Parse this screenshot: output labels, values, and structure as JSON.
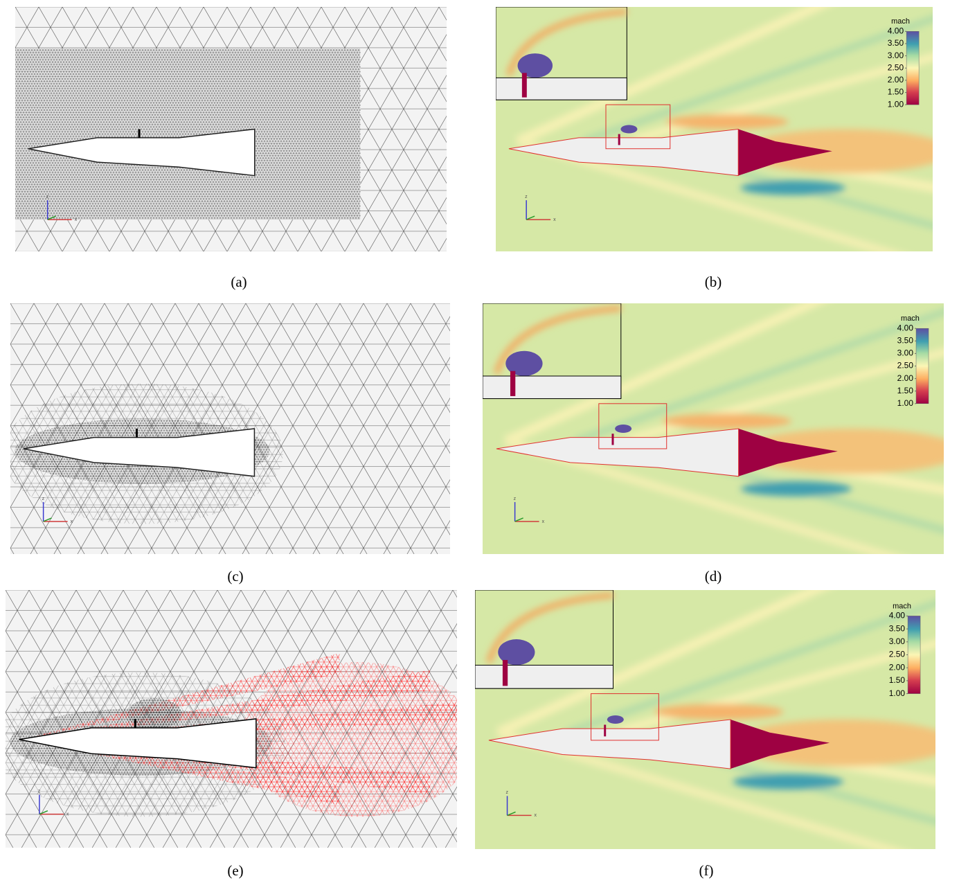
{
  "panels": [
    {
      "label": "(a)",
      "type": "mesh",
      "axes": [
        "z",
        "x"
      ]
    },
    {
      "label": "(b)",
      "type": "mach-contour",
      "axes": [
        "z",
        "x"
      ],
      "colorbar": {
        "title": "mach",
        "range": [
          1,
          4
        ],
        "ticks": [
          {
            "value": 4,
            "label": "4.00"
          },
          {
            "value": 3.5,
            "label": "3.50"
          },
          {
            "value": 3,
            "label": "3.00"
          },
          {
            "value": 2.5,
            "label": "2.50"
          },
          {
            "value": 2,
            "label": "2.00"
          },
          {
            "value": 1.5,
            "label": "1.50"
          },
          {
            "value": 1,
            "label": "1.00"
          }
        ]
      }
    },
    {
      "label": "(c)",
      "type": "coarse-mesh",
      "axes": [
        "z",
        "x"
      ]
    },
    {
      "label": "(d)",
      "type": "mach-contour",
      "axes": [
        "z",
        "x"
      ],
      "colorbar": {
        "title": "mach",
        "range": [
          1,
          4
        ],
        "ticks": [
          {
            "value": 4,
            "label": "4.00"
          },
          {
            "value": 3.5,
            "label": "3.50"
          },
          {
            "value": 3,
            "label": "3.00"
          },
          {
            "value": 2.5,
            "label": "2.50"
          },
          {
            "value": 2,
            "label": "2.00"
          },
          {
            "value": 1.5,
            "label": "1.50"
          },
          {
            "value": 1,
            "label": "1.00"
          }
        ]
      }
    },
    {
      "label": "(e)",
      "type": "adapted-mesh",
      "axes": [
        "z",
        "x"
      ]
    },
    {
      "label": "(f)",
      "type": "mach-contour",
      "axes": [
        "z",
        "x"
      ],
      "colorbar": {
        "title": "mach",
        "range": [
          1,
          4
        ],
        "ticks": [
          {
            "value": 4,
            "label": "4.00"
          },
          {
            "value": 3.5,
            "label": "3.50"
          },
          {
            "value": 3,
            "label": "3.00"
          },
          {
            "value": 2.5,
            "label": "2.50"
          },
          {
            "value": 2,
            "label": "2.00"
          },
          {
            "value": 1.5,
            "label": "1.50"
          },
          {
            "value": 1,
            "label": "1.00"
          }
        ]
      }
    }
  ]
}
